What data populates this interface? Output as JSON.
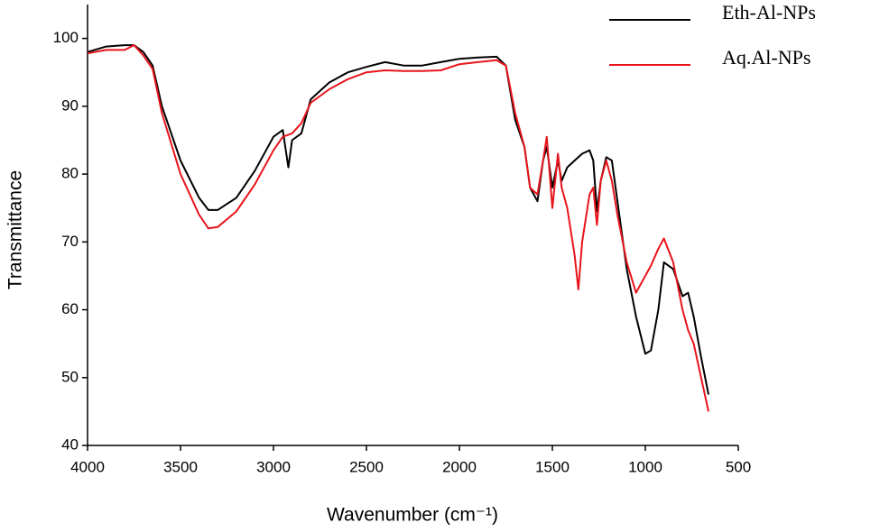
{
  "chart_data": {
    "type": "line",
    "xlabel": "Wavenumber (cm⁻¹)",
    "ylabel": "Transmittance",
    "x": [
      4000,
      3900,
      3800,
      3750,
      3700,
      3650,
      3600,
      3500,
      3400,
      3350,
      3300,
      3200,
      3100,
      3000,
      2950,
      2920,
      2900,
      2850,
      2800,
      2700,
      2600,
      2500,
      2400,
      2300,
      2200,
      2100,
      2000,
      1900,
      1800,
      1750,
      1700,
      1650,
      1620,
      1580,
      1550,
      1530,
      1500,
      1470,
      1450,
      1420,
      1380,
      1360,
      1340,
      1300,
      1280,
      1260,
      1240,
      1210,
      1180,
      1150,
      1100,
      1050,
      1000,
      970,
      930,
      900,
      850,
      800,
      770,
      740,
      700,
      660
    ],
    "series": [
      {
        "name": "Eth-Al-NPs",
        "color": "#000000",
        "values": [
          98,
          98.8,
          99,
          99,
          98,
          96,
          90,
          82,
          76.5,
          74.7,
          74.7,
          76.5,
          80.5,
          85.5,
          86.5,
          81,
          85,
          86,
          91,
          93.5,
          95,
          95.8,
          96.5,
          96,
          96,
          96.5,
          97,
          97.2,
          97.3,
          96,
          88,
          84,
          78,
          76,
          82,
          84,
          78,
          82,
          79,
          81,
          82,
          82.5,
          83,
          83.5,
          82,
          74.5,
          79,
          82.5,
          82,
          76,
          66,
          59,
          53.5,
          54,
          60,
          67,
          66,
          62,
          62.5,
          59,
          53,
          47.5
        ]
      },
      {
        "name": "Aq.Al-NPs",
        "color": "#e8141b",
        "values": [
          97.8,
          98.3,
          98.3,
          99,
          97.5,
          95.5,
          89,
          80,
          74,
          72,
          72.2,
          74.5,
          78.5,
          83.5,
          85.5,
          85.8,
          86,
          87.5,
          90.5,
          92.5,
          94,
          95,
          95.3,
          95.2,
          95.2,
          95.3,
          96.2,
          96.5,
          96.8,
          96,
          89,
          84,
          78,
          77,
          82,
          85.5,
          75,
          83,
          78,
          75,
          68,
          63,
          70,
          77,
          78,
          72.5,
          79,
          82,
          79,
          74,
          67,
          62.5,
          65,
          66.5,
          69,
          70.5,
          67,
          60,
          57,
          55,
          50,
          45
        ]
      }
    ],
    "xlim": [
      4000,
      500
    ],
    "xticks": [
      4000,
      3500,
      3000,
      2500,
      2000,
      1500,
      1000,
      500
    ],
    "ylim": [
      40,
      105
    ],
    "yticks": [
      40,
      50,
      60,
      70,
      80,
      90,
      100
    ],
    "legend": "upper-right"
  }
}
